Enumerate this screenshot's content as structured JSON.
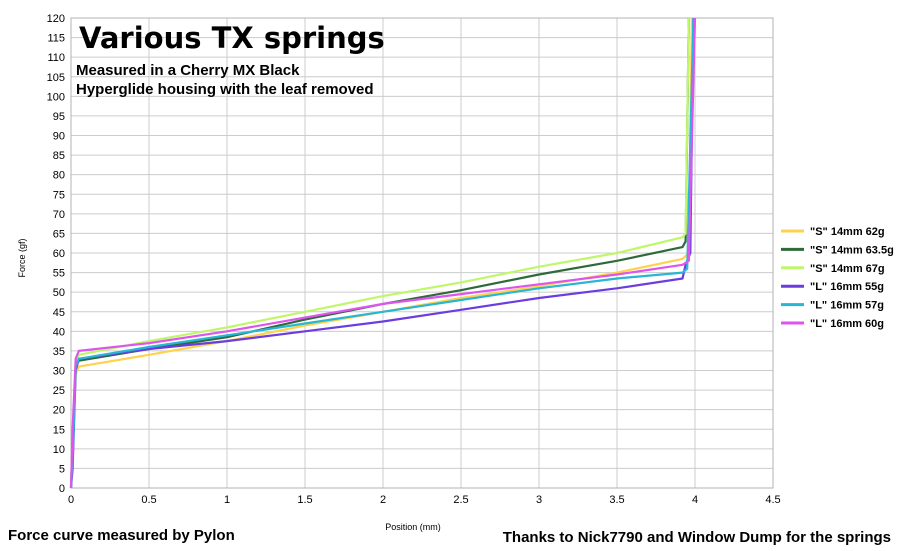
{
  "chart_data": {
    "type": "line",
    "title": "Various TX springs",
    "subtitle_lines": [
      "Measured in a Cherry MX Black",
      "Hyperglide housing with the leaf removed"
    ],
    "xlabel": "Position (mm)",
    "ylabel": "Force (gf)",
    "xlim": [
      0,
      4.5
    ],
    "ylim": [
      0,
      120
    ],
    "x_ticks": [
      "0",
      "0.5",
      "1",
      "1.5",
      "2",
      "2.5",
      "3",
      "3.5",
      "4",
      "4.5"
    ],
    "y_ticks": [
      "0",
      "5",
      "10",
      "15",
      "20",
      "25",
      "30",
      "35",
      "40",
      "45",
      "50",
      "55",
      "60",
      "65",
      "70",
      "75",
      "80",
      "85",
      "90",
      "95",
      "100",
      "105",
      "110",
      "115",
      "120"
    ],
    "grid": true,
    "legend_position": "right",
    "footer_left": "Force curve measured by Pylon",
    "footer_right": "Thanks to Nick7790 and Window Dump for the springs",
    "series": [
      {
        "name": "\"S\" 14mm 62g",
        "color": "#ffd24d",
        "x": [
          0,
          0.01,
          0.03,
          0.05,
          0.5,
          1.0,
          1.5,
          2.0,
          2.5,
          3.0,
          3.5,
          3.92,
          3.96,
          3.98
        ],
        "y": [
          0,
          10,
          29,
          31,
          34,
          37.5,
          41.5,
          45,
          48.5,
          51.5,
          55,
          58.5,
          60,
          120
        ]
      },
      {
        "name": "\"S\" 14mm 63.5g",
        "color": "#2e6a3a",
        "x": [
          0,
          0.01,
          0.03,
          0.05,
          0.5,
          1.0,
          1.5,
          2.0,
          2.5,
          3.0,
          3.5,
          3.92,
          3.94,
          3.96
        ],
        "y": [
          0,
          12,
          31,
          32.5,
          35.5,
          38.5,
          43,
          47,
          50.5,
          54.5,
          58,
          61.5,
          63,
          120
        ]
      },
      {
        "name": "\"S\" 14mm 67g",
        "color": "#bff76a",
        "x": [
          0,
          0.01,
          0.03,
          0.05,
          0.5,
          1.0,
          1.5,
          2.0,
          2.5,
          3.0,
          3.5,
          3.92,
          3.94,
          3.96
        ],
        "y": [
          0,
          12,
          32,
          34,
          37.5,
          41,
          45,
          49,
          52.5,
          56.5,
          60,
          64,
          65,
          120
        ]
      },
      {
        "name": "\"L\" 16mm 55g",
        "color": "#6b3de0",
        "x": [
          0,
          0.01,
          0.03,
          0.05,
          0.5,
          1.0,
          1.5,
          2.0,
          2.5,
          3.0,
          3.5,
          3.92,
          3.94,
          3.97,
          3.99
        ],
        "y": [
          0,
          5,
          30,
          33,
          35.5,
          37.5,
          40,
          42.5,
          45.5,
          48.5,
          51,
          53.5,
          57,
          60,
          120
        ]
      },
      {
        "name": "\"L\" 16mm 57g",
        "color": "#27b6d4",
        "x": [
          0,
          0.01,
          0.03,
          0.05,
          0.5,
          1.0,
          1.5,
          2.0,
          2.5,
          3.0,
          3.5,
          3.92,
          3.95,
          3.99
        ],
        "y": [
          0,
          8,
          31,
          33,
          36,
          39,
          42,
          45,
          48,
          51,
          53.5,
          55,
          56,
          120
        ]
      },
      {
        "name": "\"L\" 16mm 60g",
        "color": "#dd55ee",
        "x": [
          0,
          0.01,
          0.03,
          0.05,
          0.5,
          1.0,
          1.5,
          2.0,
          2.5,
          3.0,
          3.5,
          3.92,
          3.96,
          4.0
        ],
        "y": [
          0,
          15,
          33,
          35,
          37,
          40,
          43.5,
          47,
          49.5,
          52,
          54.5,
          57,
          58,
          120
        ]
      }
    ]
  }
}
